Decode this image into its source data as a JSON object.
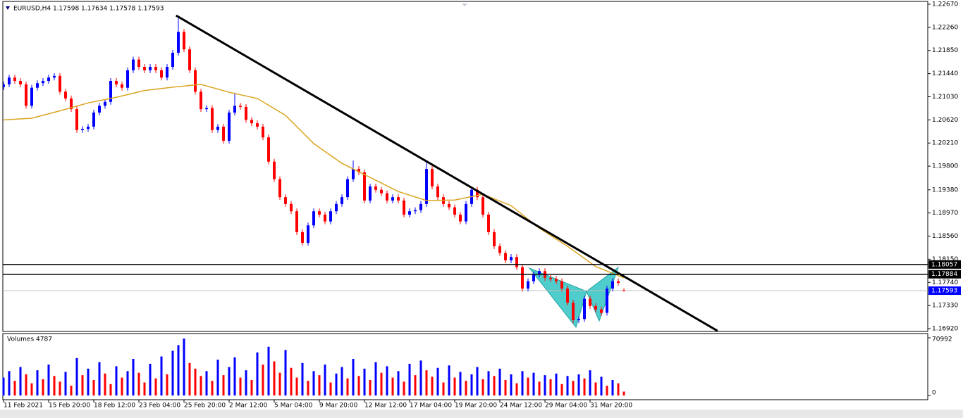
{
  "chart_data": {
    "type": "candlestick",
    "title": "EURUSD,H4  1.17598 1.17634 1.17578 1.17593",
    "categories": [
      "11 Feb 2021",
      null,
      null,
      null,
      null,
      null,
      null,
      null,
      "15 Feb 20:00",
      null,
      null,
      null,
      null,
      null,
      null,
      null,
      "18 Feb 12:00",
      null,
      null,
      null,
      null,
      null,
      null,
      null,
      "23 Feb 04:00",
      null,
      null,
      null,
      null,
      null,
      null,
      null,
      "25 Feb 20:00",
      null,
      null,
      null,
      null,
      null,
      null,
      null,
      "2 Mar 12:00",
      null,
      null,
      null,
      null,
      null,
      null,
      null,
      "5 Mar 04:00",
      null,
      null,
      null,
      null,
      null,
      null,
      null,
      "9 Mar 20:00",
      null,
      null,
      null,
      null,
      null,
      null,
      null,
      "12 Mar 12:00",
      null,
      null,
      null,
      null,
      null,
      null,
      null,
      "17 Mar 04:00",
      null,
      null,
      null,
      null,
      null,
      null,
      null,
      "19 Mar 20:00",
      null,
      null,
      null,
      null,
      null,
      null,
      null,
      "24 Mar 12:00",
      null,
      null,
      null,
      null,
      null,
      null,
      null,
      "29 Mar 04:00",
      null,
      null,
      null,
      null,
      null,
      null,
      null,
      "31 Mar 20:00",
      null,
      null,
      null,
      null,
      null,
      null
    ],
    "ohlc": [
      [
        1.212,
        1.213,
        1.2115,
        1.2125
      ],
      [
        1.2125,
        1.2142,
        1.212,
        1.2137
      ],
      [
        1.2137,
        1.2142,
        1.2126,
        1.2131
      ],
      [
        1.2131,
        1.2136,
        1.212,
        1.2125
      ],
      [
        1.2125,
        1.213,
        1.2082,
        1.2087
      ],
      [
        1.2087,
        1.2124,
        1.2082,
        1.2119
      ],
      [
        1.2119,
        1.2132,
        1.2114,
        1.2127
      ],
      [
        1.2127,
        1.2136,
        1.2122,
        1.2131
      ],
      [
        1.2131,
        1.2142,
        1.2126,
        1.2137
      ],
      [
        1.2137,
        1.2145,
        1.2132,
        1.214
      ],
      [
        1.214,
        1.2145,
        1.2107,
        1.2112
      ],
      [
        1.2112,
        1.2117,
        1.2095,
        1.21
      ],
      [
        1.21,
        1.2105,
        1.2076,
        1.2081
      ],
      [
        1.2081,
        1.2086,
        1.2039,
        1.2044
      ],
      [
        1.2044,
        1.2051,
        1.2039,
        1.2046
      ],
      [
        1.2046,
        1.2055,
        1.2041,
        1.205
      ],
      [
        1.205,
        1.208,
        1.2045,
        1.2075
      ],
      [
        1.2075,
        1.2092,
        1.207,
        1.2087
      ],
      [
        1.2087,
        1.2099,
        1.2082,
        1.2094
      ],
      [
        1.2094,
        1.2136,
        1.2089,
        1.2131
      ],
      [
        1.2131,
        1.2136,
        1.212,
        1.2125
      ],
      [
        1.2125,
        1.213,
        1.2114,
        1.2119
      ],
      [
        1.2119,
        1.2155,
        1.2114,
        1.215
      ],
      [
        1.215,
        1.2174,
        1.2145,
        1.2169
      ],
      [
        1.2169,
        1.2174,
        1.2151,
        1.2156
      ],
      [
        1.2156,
        1.2161,
        1.2145,
        1.215
      ],
      [
        1.215,
        1.2161,
        1.2145,
        1.2156
      ],
      [
        1.2156,
        1.2161,
        1.2145,
        1.215
      ],
      [
        1.215,
        1.2155,
        1.2132,
        1.2137
      ],
      [
        1.2137,
        1.2161,
        1.2132,
        1.2156
      ],
      [
        1.2156,
        1.2186,
        1.2151,
        1.2181
      ],
      [
        1.2181,
        1.2242,
        1.2176,
        1.2218
      ],
      [
        1.2218,
        1.2223,
        1.2182,
        1.2187
      ],
      [
        1.2187,
        1.2192,
        1.2145,
        1.215
      ],
      [
        1.215,
        1.2155,
        1.2107,
        1.2112
      ],
      [
        1.2112,
        1.2117,
        1.2076,
        1.2081
      ],
      [
        1.2081,
        1.2088,
        1.2076,
        1.2083
      ],
      [
        1.2083,
        1.2088,
        1.2039,
        1.2044
      ],
      [
        1.2044,
        1.2055,
        1.2039,
        1.205
      ],
      [
        1.205,
        1.2055,
        1.202,
        1.2025
      ],
      [
        1.2025,
        1.208,
        1.202,
        1.2075
      ],
      [
        1.2075,
        1.211,
        1.207,
        1.2087
      ],
      [
        1.2087,
        1.2092,
        1.208,
        1.2085
      ],
      [
        1.2085,
        1.209,
        1.2057,
        1.2062
      ],
      [
        1.2062,
        1.2067,
        1.2051,
        1.2056
      ],
      [
        1.2056,
        1.2061,
        1.2045,
        1.205
      ],
      [
        1.205,
        1.2055,
        1.2026,
        1.2031
      ],
      [
        1.2031,
        1.2036,
        1.1983,
        1.1988
      ],
      [
        1.1988,
        1.1993,
        1.1952,
        1.1957
      ],
      [
        1.1957,
        1.1962,
        1.192,
        1.1925
      ],
      [
        1.1925,
        1.193,
        1.1908,
        1.1913
      ],
      [
        1.1913,
        1.1918,
        1.1895,
        1.19
      ],
      [
        1.19,
        1.1905,
        1.1858,
        1.1863
      ],
      [
        1.1863,
        1.1868,
        1.1839,
        1.1844
      ],
      [
        1.1844,
        1.188,
        1.1839,
        1.1875
      ],
      [
        1.1875,
        1.1905,
        1.187,
        1.19
      ],
      [
        1.19,
        1.1905,
        1.1889,
        1.1894
      ],
      [
        1.1894,
        1.1899,
        1.1877,
        1.1882
      ],
      [
        1.1882,
        1.1905,
        1.1877,
        1.19
      ],
      [
        1.19,
        1.1918,
        1.1895,
        1.1913
      ],
      [
        1.1913,
        1.193,
        1.1908,
        1.1925
      ],
      [
        1.1925,
        1.1962,
        1.192,
        1.1957
      ],
      [
        1.1957,
        1.199,
        1.1952,
        1.1975
      ],
      [
        1.1975,
        1.198,
        1.1964,
        1.1969
      ],
      [
        1.1969,
        1.1974,
        1.1914,
        1.1919
      ],
      [
        1.1919,
        1.1949,
        1.1914,
        1.1944
      ],
      [
        1.1944,
        1.1949,
        1.1933,
        1.1938
      ],
      [
        1.1938,
        1.1943,
        1.1927,
        1.1932
      ],
      [
        1.1932,
        1.1937,
        1.1914,
        1.1919
      ],
      [
        1.1919,
        1.193,
        1.1914,
        1.1925
      ],
      [
        1.1925,
        1.193,
        1.1914,
        1.1919
      ],
      [
        1.1919,
        1.1924,
        1.1889,
        1.1894
      ],
      [
        1.1894,
        1.1905,
        1.1889,
        1.19
      ],
      [
        1.19,
        1.1907,
        1.1895,
        1.1902
      ],
      [
        1.1902,
        1.1918,
        1.1897,
        1.1913
      ],
      [
        1.1913,
        1.199,
        1.1908,
        1.1975
      ],
      [
        1.1975,
        1.198,
        1.1939,
        1.1944
      ],
      [
        1.1944,
        1.1949,
        1.192,
        1.1925
      ],
      [
        1.1925,
        1.193,
        1.1908,
        1.1913
      ],
      [
        1.1913,
        1.1918,
        1.1902,
        1.1907
      ],
      [
        1.1907,
        1.1912,
        1.1889,
        1.1894
      ],
      [
        1.1894,
        1.1899,
        1.1877,
        1.1882
      ],
      [
        1.1882,
        1.1918,
        1.1877,
        1.1913
      ],
      [
        1.1913,
        1.1943,
        1.1908,
        1.1938
      ],
      [
        1.1938,
        1.1943,
        1.192,
        1.1925
      ],
      [
        1.1925,
        1.193,
        1.1889,
        1.1894
      ],
      [
        1.1894,
        1.1899,
        1.1858,
        1.1863
      ],
      [
        1.1863,
        1.1868,
        1.1833,
        1.1838
      ],
      [
        1.1838,
        1.1843,
        1.1821,
        1.1826
      ],
      [
        1.1826,
        1.1831,
        1.1808,
        1.1813
      ],
      [
        1.1813,
        1.1824,
        1.1808,
        1.1819
      ],
      [
        1.1819,
        1.1824,
        1.1796,
        1.1801
      ],
      [
        1.1801,
        1.1806,
        1.1758,
        1.1763
      ],
      [
        1.1763,
        1.1781,
        1.1758,
        1.1776
      ],
      [
        1.1776,
        1.1793,
        1.1771,
        1.1788
      ],
      [
        1.1788,
        1.1799,
        1.1783,
        1.1794
      ],
      [
        1.1794,
        1.1799,
        1.1777,
        1.1782
      ],
      [
        1.1782,
        1.1787,
        1.1775,
        1.178
      ],
      [
        1.178,
        1.1785,
        1.1771,
        1.1776
      ],
      [
        1.1776,
        1.1781,
        1.1758,
        1.1763
      ],
      [
        1.1763,
        1.1768,
        1.1733,
        1.1738
      ],
      [
        1.1738,
        1.1743,
        1.1702,
        1.1707
      ],
      [
        1.1707,
        1.1714,
        1.1702,
        1.1709
      ],
      [
        1.1709,
        1.175,
        1.1704,
        1.1745
      ],
      [
        1.1745,
        1.175,
        1.1727,
        1.1732
      ],
      [
        1.1732,
        1.1737,
        1.1721,
        1.1726
      ],
      [
        1.1726,
        1.1731,
        1.1715,
        1.172
      ],
      [
        1.172,
        1.1768,
        1.1715,
        1.1763
      ],
      [
        1.1763,
        1.1781,
        1.1758,
        1.1776
      ],
      [
        1.1776,
        1.1781,
        1.1768,
        1.1773
      ],
      [
        1.17598,
        1.17634,
        1.17578,
        1.17593
      ]
    ],
    "up_color": "#0000ff",
    "down_color": "#ff0000",
    "ylim": [
      1.1687,
      1.2272
    ],
    "yticks": [
      {
        "value": 1.2267,
        "label": "1.22670"
      },
      {
        "value": 1.2226,
        "label": "1.22260"
      },
      {
        "value": 1.2185,
        "label": "1.21850"
      },
      {
        "value": 1.2144,
        "label": "1.21440"
      },
      {
        "value": 1.2103,
        "label": "1.21030"
      },
      {
        "value": 1.2062,
        "label": "1.20620"
      },
      {
        "value": 1.2021,
        "label": "1.20210"
      },
      {
        "value": 1.198,
        "label": "1.19800"
      },
      {
        "value": 1.1938,
        "label": "1.19380"
      },
      {
        "value": 1.1897,
        "label": "1.18970"
      },
      {
        "value": 1.1856,
        "label": "1.18560"
      },
      {
        "value": 1.1815,
        "label": "1.18150"
      },
      {
        "value": 1.1774,
        "label": "1.17740"
      },
      {
        "value": 1.1733,
        "label": "1.17330"
      },
      {
        "value": 1.1692,
        "label": "1.16920"
      }
    ],
    "ma": {
      "color": "#daa520",
      "x": [
        0,
        5,
        10,
        15,
        20,
        25,
        30,
        35,
        40,
        45,
        50,
        55,
        60,
        65,
        70,
        75,
        80,
        85,
        90,
        95,
        100,
        105,
        110
      ],
      "values": [
        1.2062,
        1.2065,
        1.2078,
        1.2092,
        1.2102,
        1.2114,
        1.212,
        1.2125,
        1.2111,
        1.21,
        1.207,
        1.202,
        1.1985,
        1.196,
        1.1935,
        1.1919,
        1.192,
        1.193,
        1.191,
        1.187,
        1.1838,
        1.1802,
        1.1782
      ]
    },
    "trendline": {
      "color": "#000000",
      "x": [
        30.6,
        126.6
      ],
      "values": [
        1.2247,
        1.1688
      ]
    },
    "levels": [
      1.18057,
      1.17884
    ],
    "price_line": 1.17593,
    "volume": {
      "title": "Volumes 4787",
      "ylim": [
        0,
        70992
      ],
      "yticks": [
        70992,
        0
      ],
      "values": [
        22000,
        30000,
        18000,
        35000,
        26000,
        15000,
        31000,
        20000,
        38000,
        24000,
        17000,
        29000,
        12000,
        46000,
        25000,
        33000,
        19000,
        41000,
        27000,
        14000,
        36000,
        22000,
        30000,
        45000,
        28000,
        16000,
        39000,
        21000,
        48000,
        26000,
        55000,
        62000,
        70000,
        40000,
        33000,
        24000,
        30000,
        18000,
        44000,
        25000,
        35000,
        47000,
        22000,
        31000,
        19000,
        53000,
        38000,
        60000,
        42000,
        28000,
        56000,
        34000,
        22000,
        40000,
        18000,
        30000,
        25000,
        38000,
        16000,
        27000,
        35000,
        21000,
        45000,
        24000,
        33000,
        19000,
        41000,
        28000,
        36000,
        22000,
        30000,
        17000,
        39000,
        25000,
        43000,
        31000,
        23000,
        34000,
        16000,
        37000,
        22000,
        29000,
        18000,
        26000,
        35000,
        20000,
        30000,
        24000,
        33000,
        19000,
        26000,
        15000,
        30000,
        22000,
        28000,
        17000,
        25000,
        20000,
        27000,
        14000,
        24000,
        18000,
        26000,
        21000,
        31000,
        16000,
        23000,
        12000,
        19000,
        15000,
        4787
      ]
    }
  }
}
